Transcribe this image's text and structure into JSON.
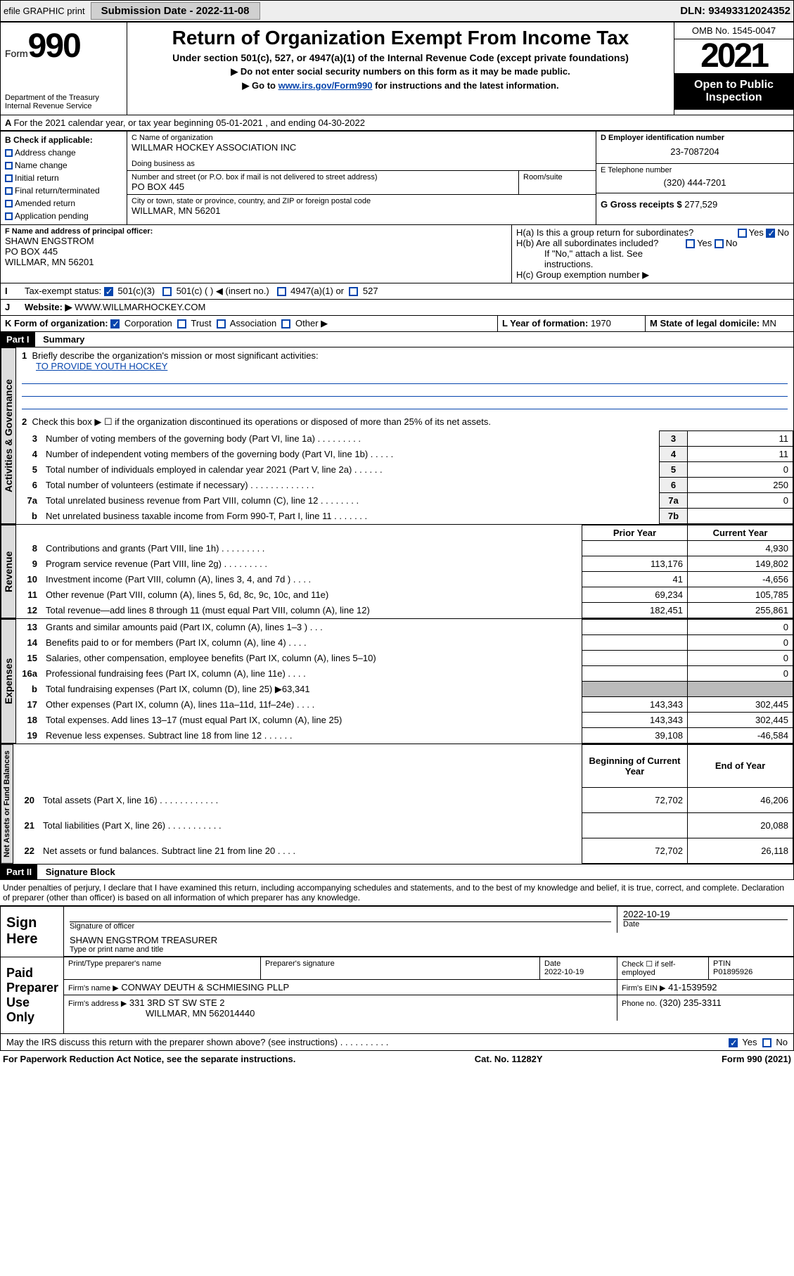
{
  "top": {
    "efile": "efile GRAPHIC print",
    "sub_label": "Submission Date - 2022-11-08",
    "dln": "DLN: 93493312024352"
  },
  "header": {
    "form": "Form",
    "num": "990",
    "dept": "Department of the Treasury",
    "irs": "Internal Revenue Service",
    "title": "Return of Organization Exempt From Income Tax",
    "sub": "Under section 501(c), 527, or 4947(a)(1) of the Internal Revenue Code (except private foundations)",
    "note1": "▶ Do not enter social security numbers on this form as it may be made public.",
    "note2_pre": "▶ Go to ",
    "note2_link": "www.irs.gov/Form990",
    "note2_post": " for instructions and the latest information.",
    "omb": "OMB No. 1545-0047",
    "year": "2021",
    "open": "Open to Public Inspection"
  },
  "periodA": "For the 2021 calendar year, or tax year beginning 05-01-2021  , and ending 04-30-2022",
  "boxB": {
    "title": "B Check if applicable:",
    "opts": [
      "Address change",
      "Name change",
      "Initial return",
      "Final return/terminated",
      "Amended return",
      "Application pending"
    ]
  },
  "boxC": {
    "label": "C Name of organization",
    "name": "WILLMAR HOCKEY ASSOCIATION INC",
    "dba": "Doing business as",
    "addr_label": "Number and street (or P.O. box if mail is not delivered to street address)",
    "room": "Room/suite",
    "addr": "PO BOX 445",
    "city_label": "City or town, state or province, country, and ZIP or foreign postal code",
    "city": "WILLMAR, MN  56201"
  },
  "boxD": {
    "label": "D Employer identification number",
    "val": "23-7087204"
  },
  "boxE": {
    "label": "E Telephone number",
    "val": "(320) 444-7201"
  },
  "boxG": {
    "label": "G Gross receipts $",
    "val": "277,529"
  },
  "boxF": {
    "label": "F Name and address of principal officer:",
    "name": "SHAWN ENGSTROM",
    "addr": "PO BOX 445",
    "city": "WILLMAR, MN  56201"
  },
  "boxH": {
    "a": "H(a)  Is this a group return for subordinates?",
    "yes": "Yes",
    "no": "No",
    "b": "H(b)  Are all subordinates included?",
    "note": "If \"No,\" attach a list. See instructions.",
    "c": "H(c)  Group exemption number ▶"
  },
  "boxI": {
    "label": "Tax-exempt status:",
    "c3": "501(c)(3)",
    "c": "501(c) (   ) ◀ (insert no.)",
    "a": "4947(a)(1) or",
    "s": "527"
  },
  "boxJ": {
    "label": "Website: ▶",
    "val": "WWW.WILLMARHOCKEY.COM"
  },
  "boxK": {
    "label": "K Form of organization:",
    "corp": "Corporation",
    "trust": "Trust",
    "assoc": "Association",
    "other": "Other ▶"
  },
  "boxL": {
    "label": "L Year of formation:",
    "val": "1970"
  },
  "boxM": {
    "label": "M State of legal domicile:",
    "val": "MN"
  },
  "part1": {
    "label": "Part I",
    "title": "Summary"
  },
  "summary": {
    "q1": "Briefly describe the organization's mission or most significant activities:",
    "mission": "TO PROVIDE YOUTH HOCKEY",
    "q2": "Check this box ▶ ☐  if the organization discontinued its operations or disposed of more than 25% of its net assets.",
    "rows_gov": [
      {
        "n": "3",
        "t": "Number of voting members of the governing body (Part VI, line 1a)  .   .   .   .   .   .   .   .   .",
        "k": "3",
        "v": "11"
      },
      {
        "n": "4",
        "t": "Number of independent voting members of the governing body (Part VI, line 1b)   .   .   .   .   .",
        "k": "4",
        "v": "11"
      },
      {
        "n": "5",
        "t": "Total number of individuals employed in calendar year 2021 (Part V, line 2a)   .   .   .   .   .   .",
        "k": "5",
        "v": "0"
      },
      {
        "n": "6",
        "t": "Total number of volunteers (estimate if necessary)   .   .   .   .   .   .   .   .   .   .   .   .   .",
        "k": "6",
        "v": "250"
      },
      {
        "n": "7a",
        "t": "Total unrelated business revenue from Part VIII, column (C), line 12   .   .   .   .   .   .   .   .",
        "k": "7a",
        "v": "0"
      },
      {
        "n": "b",
        "t": "Net unrelated business taxable income from Form 990-T, Part I, line 11   .   .   .   .   .   .   .",
        "k": "7b",
        "v": ""
      }
    ],
    "col_prior": "Prior Year",
    "col_curr": "Current Year",
    "rows_rev": [
      {
        "n": "8",
        "t": "Contributions and grants (Part VIII, line 1h)   .   .   .   .   .   .   .   .   .",
        "p": "",
        "c": "4,930"
      },
      {
        "n": "9",
        "t": "Program service revenue (Part VIII, line 2g)   .   .   .   .   .   .   .   .   .",
        "p": "113,176",
        "c": "149,802"
      },
      {
        "n": "10",
        "t": "Investment income (Part VIII, column (A), lines 3, 4, and 7d )   .   .   .   .",
        "p": "41",
        "c": "-4,656"
      },
      {
        "n": "11",
        "t": "Other revenue (Part VIII, column (A), lines 5, 6d, 8c, 9c, 10c, and 11e)",
        "p": "69,234",
        "c": "105,785"
      },
      {
        "n": "12",
        "t": "Total revenue—add lines 8 through 11 (must equal Part VIII, column (A), line 12)",
        "p": "182,451",
        "c": "255,861"
      }
    ],
    "rows_exp": [
      {
        "n": "13",
        "t": "Grants and similar amounts paid (Part IX, column (A), lines 1–3 )   .   .   .",
        "p": "",
        "c": "0"
      },
      {
        "n": "14",
        "t": "Benefits paid to or for members (Part IX, column (A), line 4)   .   .   .   .",
        "p": "",
        "c": "0"
      },
      {
        "n": "15",
        "t": "Salaries, other compensation, employee benefits (Part IX, column (A), lines 5–10)",
        "p": "",
        "c": "0"
      },
      {
        "n": "16a",
        "t": "Professional fundraising fees (Part IX, column (A), line 11e)   .   .   .   .",
        "p": "",
        "c": "0"
      },
      {
        "n": "b",
        "t": "Total fundraising expenses (Part IX, column (D), line 25) ▶63,341",
        "p": "gray",
        "c": "gray"
      },
      {
        "n": "17",
        "t": "Other expenses (Part IX, column (A), lines 11a–11d, 11f–24e)   .   .   .   .",
        "p": "143,343",
        "c": "302,445"
      },
      {
        "n": "18",
        "t": "Total expenses. Add lines 13–17 (must equal Part IX, column (A), line 25)",
        "p": "143,343",
        "c": "302,445"
      },
      {
        "n": "19",
        "t": "Revenue less expenses. Subtract line 18 from line 12   .   .   .   .   .   .",
        "p": "39,108",
        "c": "-46,584"
      }
    ],
    "col_beg": "Beginning of Current Year",
    "col_end": "End of Year",
    "rows_net": [
      {
        "n": "20",
        "t": "Total assets (Part X, line 16)   .   .   .   .   .   .   .   .   .   .   .   .",
        "p": "72,702",
        "c": "46,206"
      },
      {
        "n": "21",
        "t": "Total liabilities (Part X, line 26)   .   .   .   .   .   .   .   .   .   .   .",
        "p": "",
        "c": "20,088"
      },
      {
        "n": "22",
        "t": "Net assets or fund balances. Subtract line 21 from line 20   .   .   .   .",
        "p": "72,702",
        "c": "26,118"
      }
    ],
    "v_gov": "Activities & Governance",
    "v_rev": "Revenue",
    "v_exp": "Expenses",
    "v_net": "Net Assets or Fund Balances"
  },
  "part2": {
    "label": "Part II",
    "title": "Signature Block"
  },
  "sig": {
    "decl": "Under penalties of perjury, I declare that I have examined this return, including accompanying schedules and statements, and to the best of my knowledge and belief, it is true, correct, and complete. Declaration of preparer (other than officer) is based on all information of which preparer has any knowledge.",
    "sign_here": "Sign Here",
    "sig_officer": "Signature of officer",
    "date": "Date",
    "date_val": "2022-10-19",
    "officer": "SHAWN ENGSTROM TREASURER",
    "type_name": "Type or print name and title",
    "paid": "Paid Preparer Use Only",
    "prep_name": "Print/Type preparer's name",
    "prep_sig": "Preparer's signature",
    "prep_date": "Date",
    "prep_date_val": "2022-10-19",
    "check_self": "Check ☐ if self-employed",
    "ptin": "PTIN",
    "ptin_val": "P01895926",
    "firm_name_l": "Firm's name    ▶",
    "firm_name": "CONWAY DEUTH & SCHMIESING PLLP",
    "firm_ein_l": "Firm's EIN ▶",
    "firm_ein": "41-1539592",
    "firm_addr_l": "Firm's address ▶",
    "firm_addr": "331 3RD ST SW STE 2",
    "firm_city": "WILLMAR, MN  562014440",
    "phone_l": "Phone no.",
    "phone": "(320) 235-3311",
    "may": "May the IRS discuss this return with the preparer shown above? (see instructions)   .   .   .   .   .   .   .   .   .   .",
    "yes": "Yes",
    "no": "No"
  },
  "footer": {
    "l": "For Paperwork Reduction Act Notice, see the separate instructions.",
    "m": "Cat. No. 11282Y",
    "r": "Form 990 (2021)"
  }
}
